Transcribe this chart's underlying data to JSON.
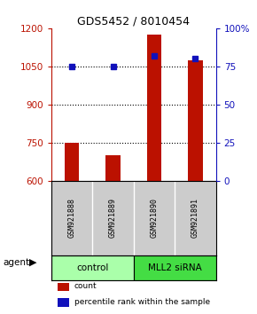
{
  "title": "GDS5452 / 8010454",
  "samples": [
    "GSM921888",
    "GSM921889",
    "GSM921890",
    "GSM921891"
  ],
  "counts": [
    750,
    700,
    1175,
    1075
  ],
  "percentiles": [
    75,
    75,
    82,
    80
  ],
  "ylim_left": [
    600,
    1200
  ],
  "ylim_right": [
    0,
    100
  ],
  "left_ticks": [
    600,
    750,
    900,
    1050,
    1200
  ],
  "right_ticks": [
    0,
    25,
    50,
    75,
    100
  ],
  "right_tick_labels": [
    "0",
    "25",
    "50",
    "75",
    "100%"
  ],
  "bar_color": "#bb1100",
  "dot_color": "#1111bb",
  "bar_width": 0.35,
  "groups": [
    {
      "label": "control",
      "samples": [
        0,
        1
      ],
      "color": "#aaffaa"
    },
    {
      "label": "MLL2 siRNA",
      "samples": [
        2,
        3
      ],
      "color": "#44dd44"
    }
  ],
  "agent_label": "agent",
  "legend_items": [
    {
      "label": "count",
      "color": "#bb1100"
    },
    {
      "label": "percentile rank within the sample",
      "color": "#1111bb"
    }
  ],
  "background_color": "#ffffff",
  "sample_bg": "#cccccc"
}
